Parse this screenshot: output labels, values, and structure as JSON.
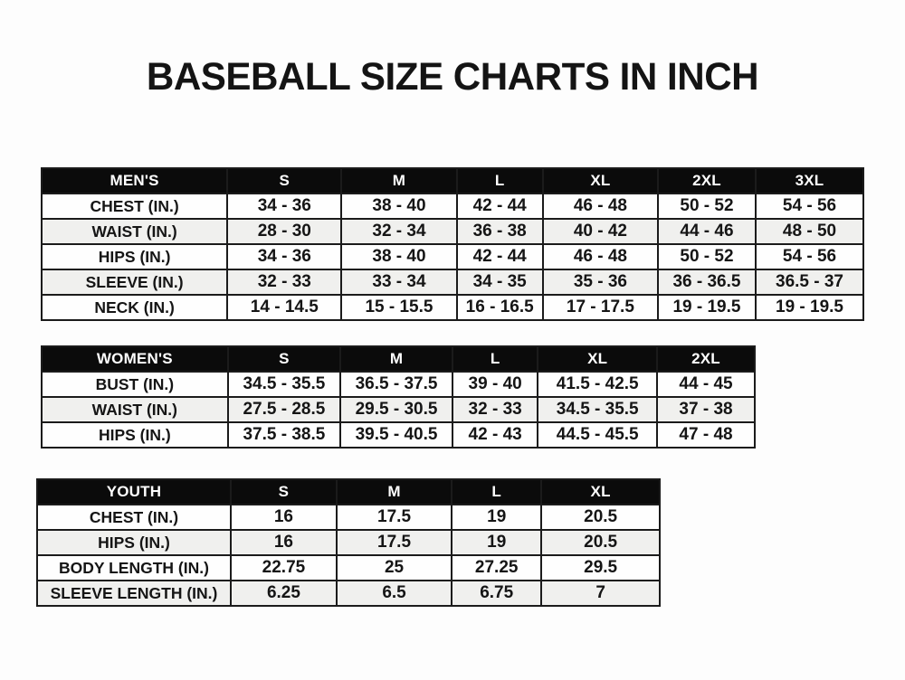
{
  "title": "BASEBALL SIZE CHARTS IN INCH",
  "colors": {
    "page_background": "#fdfdfd",
    "table_header_background": "#0b0b0b",
    "table_header_text": "#ffffff",
    "row_stripe": "#f0f0ee",
    "border": "#1b1b1b",
    "text": "#141414"
  },
  "chart_data": [
    {
      "type": "table",
      "name": "mens-size-chart",
      "columns": [
        "MEN'S",
        "S",
        "M",
        "L",
        "XL",
        "2XL",
        "3XL"
      ],
      "rows": [
        [
          "CHEST (IN.)",
          "34 - 36",
          "38 - 40",
          "42 - 44",
          "46 - 48",
          "50 - 52",
          "54 - 56"
        ],
        [
          "WAIST (IN.)",
          "28 - 30",
          "32 - 34",
          "36 - 38",
          "40 - 42",
          "44 - 46",
          "48 - 50"
        ],
        [
          "HIPS (IN.)",
          "34 - 36",
          "38 - 40",
          "42 - 44",
          "46 - 48",
          "50 - 52",
          "54 - 56"
        ],
        [
          "SLEEVE (IN.)",
          "32 - 33",
          "33 - 34",
          "34 - 35",
          "35 - 36",
          "36 - 36.5",
          "36.5 - 37"
        ],
        [
          "NECK (IN.)",
          "14 - 14.5",
          "15 - 15.5",
          "16 - 16.5",
          "17 - 17.5",
          "19 - 19.5",
          "19 - 19.5"
        ]
      ]
    },
    {
      "type": "table",
      "name": "womens-size-chart",
      "columns": [
        "WOMEN'S",
        "S",
        "M",
        "L",
        "XL",
        "2XL"
      ],
      "rows": [
        [
          "BUST (IN.)",
          "34.5 - 35.5",
          "36.5 - 37.5",
          "39 - 40",
          "41.5 - 42.5",
          "44 - 45"
        ],
        [
          "WAIST (IN.)",
          "27.5 - 28.5",
          "29.5 - 30.5",
          "32 - 33",
          "34.5 - 35.5",
          "37 - 38"
        ],
        [
          "HIPS (IN.)",
          "37.5 - 38.5",
          "39.5 - 40.5",
          "42 - 43",
          "44.5 - 45.5",
          "47 - 48"
        ]
      ]
    },
    {
      "type": "table",
      "name": "youth-size-chart",
      "columns": [
        "YOUTH",
        "S",
        "M",
        "L",
        "XL"
      ],
      "rows": [
        [
          "CHEST (IN.)",
          "16",
          "17.5",
          "19",
          "20.5"
        ],
        [
          "HIPS (IN.)",
          "16",
          "17.5",
          "19",
          "20.5"
        ],
        [
          "BODY LENGTH (IN.)",
          "22.75",
          "25",
          "27.25",
          "29.5"
        ],
        [
          "SLEEVE LENGTH (IN.)",
          "6.25",
          "6.5",
          "6.75",
          "7"
        ]
      ]
    }
  ]
}
